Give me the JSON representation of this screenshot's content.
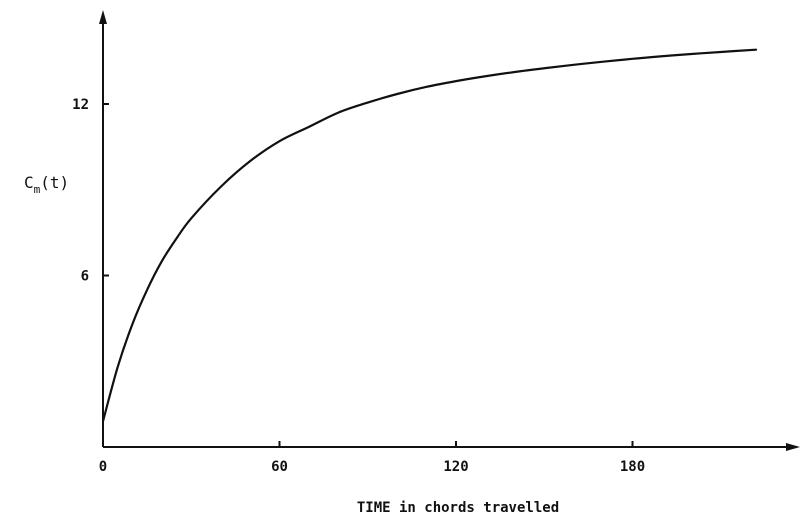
{
  "chart_data": {
    "type": "line",
    "title": "",
    "xlabel": "TIME in chords travelled",
    "ylabel": "C_m(t)",
    "ylabel_parts": {
      "main": "C",
      "sub": "m",
      "suffix": "(t)"
    },
    "xlim": [
      0,
      230
    ],
    "ylim": [
      0,
      14.7
    ],
    "x_ticks": [
      0,
      60,
      120,
      180
    ],
    "y_ticks": [
      6,
      12
    ],
    "grid": false,
    "legend": "none",
    "line_color": "#111111",
    "series": [
      {
        "x": [
          0,
          5,
          10,
          15,
          20,
          25,
          30,
          40,
          50,
          60,
          70,
          80,
          90,
          100,
          110,
          120,
          130,
          140,
          150,
          160,
          170,
          180,
          190,
          200,
          210,
          222
        ],
        "y": [
          0.9,
          2.8,
          4.3,
          5.5,
          6.5,
          7.3,
          8.0,
          9.1,
          10.0,
          10.7,
          11.2,
          11.7,
          12.05,
          12.35,
          12.6,
          12.8,
          12.97,
          13.12,
          13.25,
          13.37,
          13.48,
          13.58,
          13.67,
          13.75,
          13.82,
          13.9
        ]
      }
    ]
  }
}
